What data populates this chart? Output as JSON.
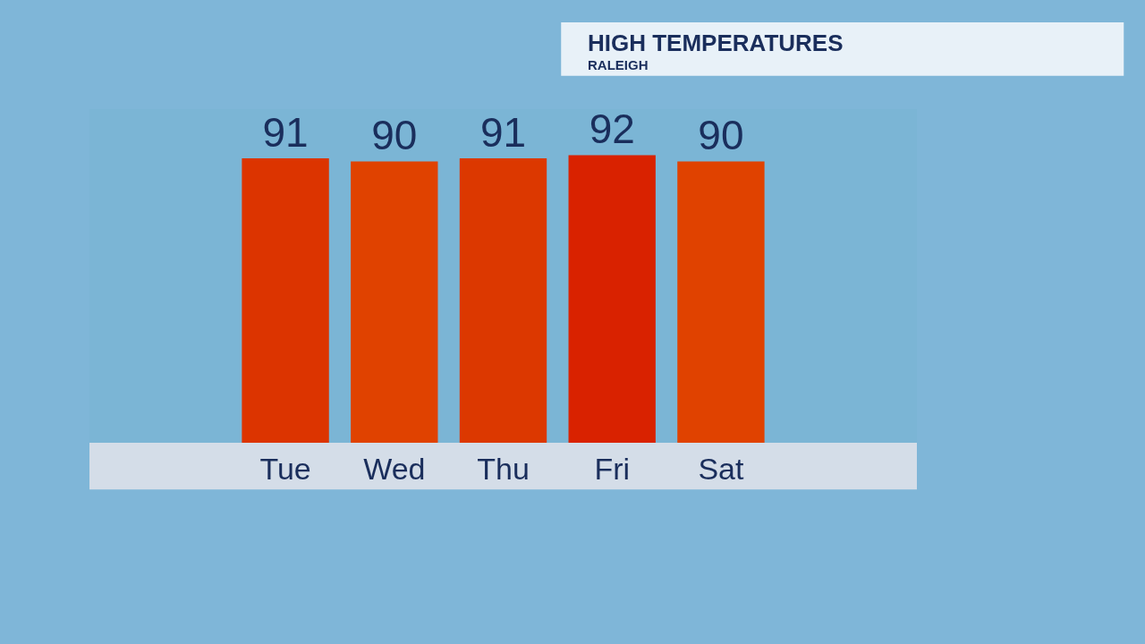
{
  "chart_data": {
    "type": "bar",
    "title": "HIGH TEMPERATURES",
    "subtitle": "RALEIGH",
    "categories": [
      "Tue",
      "Wed",
      "Thu",
      "Fri",
      "Sat"
    ],
    "values": [
      91,
      90,
      91,
      92,
      90
    ],
    "colors": [
      "#dc3400",
      "#e04200",
      "#dc3800",
      "#d92200",
      "#e04200"
    ],
    "data_labels": true,
    "grid": false,
    "legend": false
  }
}
